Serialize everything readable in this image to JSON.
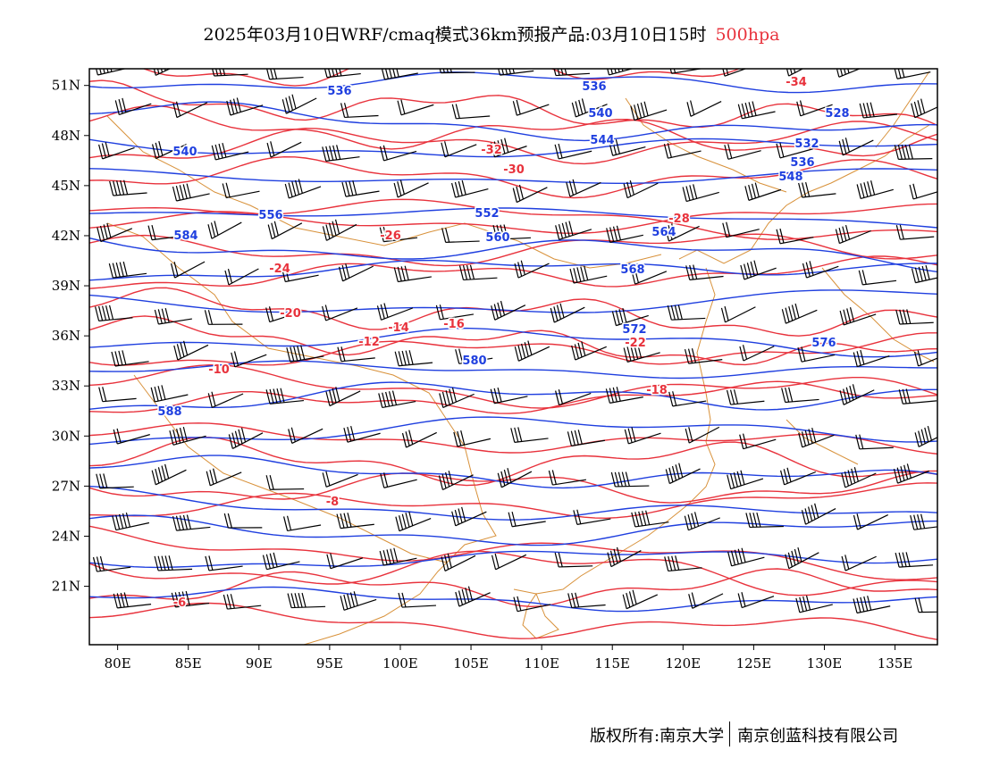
{
  "title": {
    "main": "2025年03月10日WRF/cmaq模式36km预报产品:03月10日15时",
    "level": "500hpa"
  },
  "colors": {
    "height_contour": "#1f3fdf",
    "temperature_contour": "#e8323c",
    "coastline": "#d8913a",
    "wind_barb": "#000000",
    "level_label": "#e8323c"
  },
  "axes": {
    "lon_range": [
      78,
      138
    ],
    "lat_range": [
      17.5,
      52
    ],
    "lon_ticks": [
      "80E",
      "85E",
      "90E",
      "95E",
      "100E",
      "105E",
      "110E",
      "115E",
      "120E",
      "125E",
      "130E",
      "135E"
    ],
    "lat_ticks": [
      "51N",
      "48N",
      "45N",
      "42N",
      "39N",
      "36N",
      "33N",
      "30N",
      "27N",
      "24N",
      "21N"
    ]
  },
  "height_labels": [
    "536",
    "536",
    "532",
    "536",
    "528",
    "540",
    "540",
    "544",
    "548",
    "552",
    "556",
    "560",
    "564",
    "568",
    "572",
    "576",
    "580",
    "584",
    "588"
  ],
  "temperature_labels": [
    "-34",
    "-32",
    "-30",
    "-28",
    "-26",
    "-24",
    "-22",
    "-20",
    "-18",
    "-16",
    "-14",
    "-12",
    "-10",
    "-8",
    "-6"
  ],
  "footer": {
    "copyright": "版权所有:南京大学",
    "company": "南京创蓝科技有限公司"
  }
}
